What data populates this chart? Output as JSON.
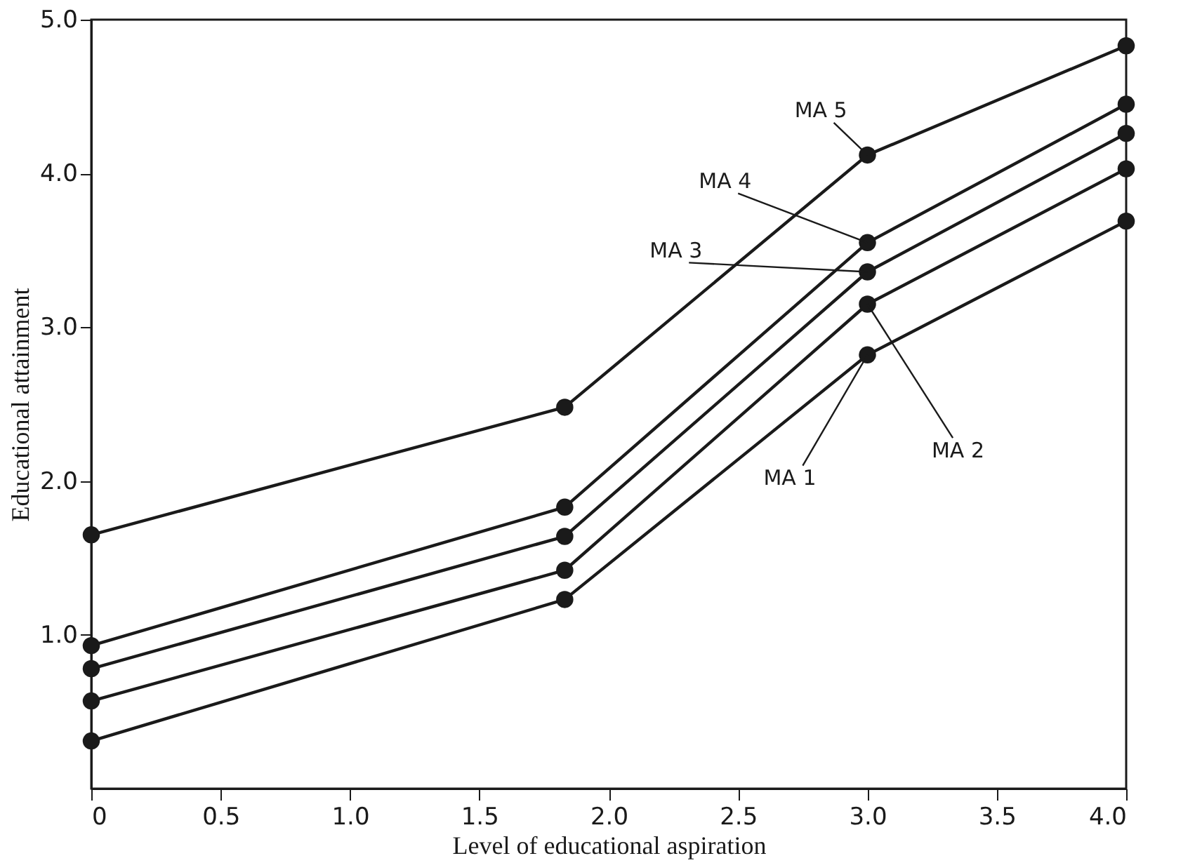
{
  "chart_data": {
    "type": "line",
    "xlabel": "Level of educational aspiration",
    "ylabel": "Educational attainment",
    "x": [
      0,
      1.83,
      3.0,
      4.0
    ],
    "series": [
      {
        "name": "MA 1",
        "color": "#1a1a1a",
        "values": [
          0.31,
          1.23,
          2.82,
          3.69
        ]
      },
      {
        "name": "MA 2",
        "color": "#1a1a1a",
        "values": [
          0.57,
          1.42,
          3.15,
          4.03
        ]
      },
      {
        "name": "MA 3",
        "color": "#1a1a1a",
        "values": [
          0.78,
          1.64,
          3.36,
          4.26
        ]
      },
      {
        "name": "MA 4",
        "color": "#1a1a1a",
        "values": [
          0.93,
          1.83,
          3.55,
          4.45
        ]
      },
      {
        "name": "MA 5",
        "color": "#1a1a1a",
        "values": [
          1.65,
          2.48,
          4.12,
          4.83
        ]
      }
    ],
    "xlim": [
      0,
      4.0
    ],
    "ylim": [
      0,
      5.0
    ],
    "xticks": [
      0,
      0.5,
      {
        "value": 1.0,
        "label": "1.0"
      },
      1.5,
      {
        "value": 2.0,
        "label": "2.0"
      },
      2.5,
      {
        "value": 3.0,
        "label": "3.0"
      },
      3.5,
      {
        "value": 4.0,
        "label": "4.0"
      }
    ],
    "yticks": [
      {
        "value": 1.0,
        "label": "1.0"
      },
      {
        "value": 2.0,
        "label": "2.0"
      },
      {
        "value": 3.0,
        "label": "3.0"
      },
      {
        "value": 4.0,
        "label": "4.0"
      },
      {
        "value": 5.0,
        "label": "5.0"
      }
    ],
    "marker": "circle",
    "line_style": "solid",
    "grid": false
  }
}
